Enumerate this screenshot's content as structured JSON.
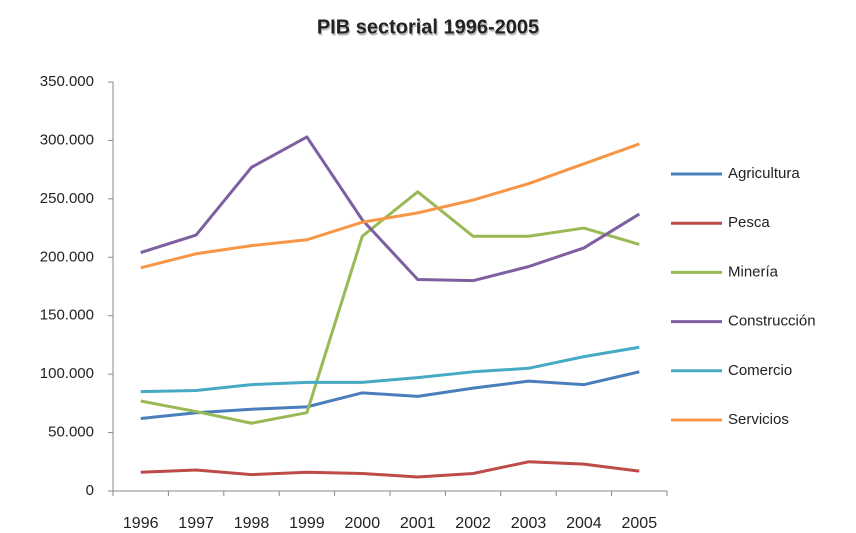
{
  "chart_data": {
    "type": "line",
    "title": "PIB sectorial 1996-2005",
    "categories": [
      "1996",
      "1997",
      "1998",
      "1999",
      "2000",
      "2001",
      "2002",
      "2003",
      "2004",
      "2005"
    ],
    "series": [
      {
        "name": "Agricultura",
        "color": "#4a7ebb",
        "values": [
          62000,
          67000,
          70000,
          72000,
          84000,
          81000,
          88000,
          94000,
          91000,
          102000
        ]
      },
      {
        "name": "Pesca",
        "color": "#be4b48",
        "values": [
          16000,
          18000,
          14000,
          16000,
          15000,
          12000,
          15000,
          25000,
          23000,
          17000
        ]
      },
      {
        "name": "Minería",
        "color": "#98b954",
        "values": [
          77000,
          68000,
          58000,
          67000,
          218000,
          256000,
          218000,
          218000,
          225000,
          211000
        ]
      },
      {
        "name": "Construcción",
        "color": "#7d60a0",
        "values": [
          204000,
          219000,
          277000,
          303000,
          232000,
          181000,
          180000,
          192000,
          208000,
          237000
        ]
      },
      {
        "name": "Comercio",
        "color": "#46aac5",
        "values": [
          85000,
          86000,
          91000,
          93000,
          93000,
          97000,
          102000,
          105000,
          115000,
          123000
        ]
      },
      {
        "name": "Servicios",
        "color": "#f79646",
        "values": [
          191000,
          203000,
          210000,
          215000,
          230000,
          238000,
          249000,
          263000,
          280000,
          297000
        ]
      }
    ],
    "ylim": [
      0,
      350000
    ],
    "yticks": [
      0,
      {
        "value": 50000,
        "label": "50.000"
      },
      {
        "value": 100000,
        "label": "100.000"
      },
      {
        "value": 150000,
        "label": "150.000"
      },
      {
        "value": 200000,
        "label": "200.000"
      },
      {
        "value": 250000,
        "label": "250.000"
      },
      {
        "value": 300000,
        "label": "300.000"
      },
      {
        "value": 350000,
        "label": "350.000"
      }
    ],
    "grid": false,
    "legend": "right"
  }
}
